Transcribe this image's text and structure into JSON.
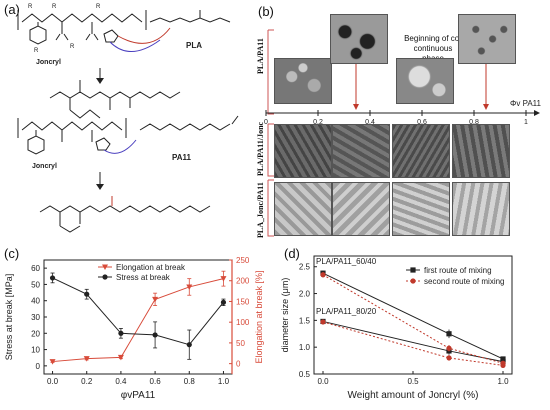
{
  "panel_a": {
    "label": "(a)",
    "joncryl1": "Joncryl",
    "joncryl2": "Joncryl",
    "pla": "PLA",
    "pa11": "PA11",
    "r1": "R",
    "r2": "R",
    "r3": "R",
    "r4": "R",
    "r5": "R"
  },
  "panel_b": {
    "label": "(b)",
    "row1": "PLA/PA11",
    "row2": "PLA/PA11/Jonc",
    "row3": "PLA_Jonc/PA11",
    "annotation": "Beginning of co-continuous phase",
    "axis_label": "Φv PA11",
    "ticks": [
      "0",
      "0.2",
      "0.4",
      "0.6",
      "0.8",
      "1"
    ]
  },
  "chart_data": [
    {
      "type": "line",
      "panel": "(c)",
      "xlabel": "φvPA11",
      "ylabel": "Stress at break [MPa]",
      "y2label": "Elongation at break [%]",
      "x": [
        0.0,
        0.2,
        0.4,
        0.6,
        0.8,
        1.0
      ],
      "xlim": [
        -0.05,
        1.05
      ],
      "ylim": [
        -5,
        65
      ],
      "y2lim": [
        -25,
        250
      ],
      "xticks": [
        "0.0",
        "0.2",
        "0.4",
        "0.6",
        "0.8",
        "1.0"
      ],
      "yticks": [
        "0",
        "10",
        "20",
        "30",
        "40",
        "50",
        "60"
      ],
      "y2ticks": [
        "0",
        "50",
        "100",
        "150",
        "200",
        "250"
      ],
      "legend_position": "top",
      "series": [
        {
          "name": "Elongation at break",
          "axis": "right",
          "color": "#d84b3a",
          "marker": "triangle-down",
          "values": [
            5,
            12,
            15,
            155,
            185,
            205
          ],
          "errors": [
            2,
            3,
            3,
            15,
            20,
            18
          ]
        },
        {
          "name": "Stress at break",
          "axis": "left",
          "color": "#222222",
          "marker": "circle",
          "values": [
            54,
            44,
            20,
            19,
            13,
            39
          ],
          "errors": [
            3,
            3,
            3,
            8,
            9,
            2
          ]
        }
      ]
    },
    {
      "type": "line",
      "panel": "(d)",
      "xlabel": "Weight amount of Joncryl (%)",
      "ylabel": "diameter size (μm)",
      "x": [
        0.0,
        0.7,
        1.0
      ],
      "xlim": [
        -0.05,
        1.05
      ],
      "ylim": [
        0.5,
        2.7
      ],
      "xticks": [
        "0.0",
        "0.5",
        "1.0"
      ],
      "yticks": [
        "0.5",
        "1.0",
        "1.5",
        "2.0",
        "2.5"
      ],
      "legend_position": "top-right",
      "annotations": [
        "PLA/PA11_60/40",
        "PLA/PA11_80/20"
      ],
      "series": [
        {
          "name": "first route of mixing",
          "color": "#222222",
          "marker": "square",
          "dash": "solid",
          "groups": [
            {
              "values": [
                2.38,
                1.25,
                0.78
              ],
              "errors": [
                0.05,
                0.08,
                0.03
              ]
            },
            {
              "values": [
                1.48,
                0.93,
                0.73
              ],
              "errors": [
                0.04,
                0.07,
                0.03
              ]
            }
          ]
        },
        {
          "name": "second route of mixing",
          "color": "#c0392b",
          "marker": "circle",
          "dash": "dotted",
          "groups": [
            {
              "values": [
                2.35,
                0.98,
                0.7
              ],
              "errors": [
                0.05,
                0.06,
                0.03
              ]
            },
            {
              "values": [
                1.47,
                0.8,
                0.66
              ],
              "errors": [
                0.04,
                0.05,
                0.03
              ]
            }
          ]
        }
      ]
    }
  ]
}
